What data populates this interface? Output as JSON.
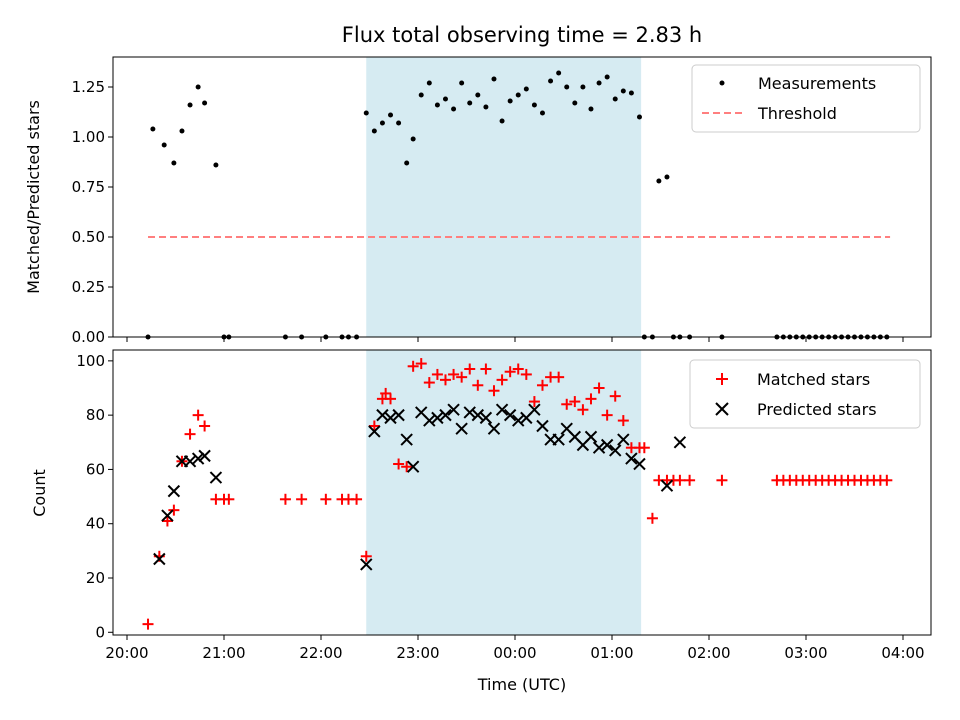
{
  "chart_data": {
    "title": "Flux total observing time = 2.83 h",
    "xlabel": "Time (UTC)",
    "x_ticks": [
      "20:00",
      "21:00",
      "22:00",
      "23:00",
      "00:00",
      "01:00",
      "02:00",
      "03:00",
      "04:00"
    ],
    "shaded_interval": {
      "start": "22:28",
      "end": "01:18",
      "color": "#add8e6"
    },
    "panels": [
      {
        "type": "scatter",
        "ylabel": "Matched/Predicted stars",
        "ylim": [
          0,
          1.4
        ],
        "y_ticks": [
          "0.00",
          "0.25",
          "0.50",
          "0.75",
          "1.00",
          "1.25"
        ],
        "legend": {
          "position": "top-right",
          "entries": [
            "Measurements",
            "Threshold"
          ]
        },
        "series": [
          {
            "name": "Measurements",
            "marker": "dot",
            "color": "#000000",
            "x": [
              "20:13",
              "20:16",
              "20:23",
              "20:29",
              "20:34",
              "20:39",
              "20:44",
              "20:48",
              "20:55",
              "21:00",
              "21:03",
              "21:38",
              "21:48",
              "22:03",
              "22:13",
              "22:17",
              "22:22",
              "22:28",
              "22:33",
              "22:38",
              "22:43",
              "22:48",
              "22:53",
              "22:57",
              "23:02",
              "23:07",
              "23:12",
              "23:17",
              "23:22",
              "23:27",
              "23:32",
              "23:37",
              "23:42",
              "23:47",
              "23:52",
              "23:57",
              "00:02",
              "00:07",
              "00:12",
              "00:17",
              "00:22",
              "00:27",
              "00:32",
              "00:37",
              "00:42",
              "00:47",
              "00:52",
              "00:57",
              "01:02",
              "01:07",
              "01:12",
              "01:17",
              "01:20",
              "01:25",
              "01:29",
              "01:34",
              "01:38",
              "01:42",
              "01:48",
              "02:08",
              "02:42",
              "02:46",
              "02:50",
              "02:54",
              "02:58",
              "03:02",
              "03:06",
              "03:10",
              "03:14",
              "03:18",
              "03:22",
              "03:26",
              "03:30",
              "03:34",
              "03:38",
              "03:42",
              "03:46",
              "03:50"
            ],
            "y": [
              0,
              1.04,
              0.96,
              0.87,
              1.03,
              1.16,
              1.25,
              1.17,
              0.86,
              0,
              0,
              0,
              0,
              0,
              0,
              0,
              0,
              1.12,
              1.03,
              1.07,
              1.11,
              1.07,
              0.87,
              0.99,
              1.21,
              1.27,
              1.16,
              1.19,
              1.14,
              1.27,
              1.17,
              1.21,
              1.15,
              1.29,
              1.08,
              1.18,
              1.21,
              1.24,
              1.16,
              1.12,
              1.28,
              1.32,
              1.25,
              1.17,
              1.25,
              1.14,
              1.27,
              1.3,
              1.19,
              1.23,
              1.22,
              1.1,
              0,
              0,
              0.78,
              0.8,
              0,
              0,
              0,
              0,
              0,
              0,
              0,
              0,
              0,
              0,
              0,
              0,
              0,
              0,
              0,
              0,
              0,
              0,
              0,
              0,
              0,
              0
            ]
          },
          {
            "name": "Threshold",
            "style": "dashed",
            "color": "#ff7f7f",
            "x": [
              "20:13",
              "03:52"
            ],
            "y": [
              0.5,
              0.5
            ]
          }
        ]
      },
      {
        "type": "scatter",
        "ylabel": "Count",
        "ylim": [
          -1,
          104
        ],
        "y_ticks": [
          "0",
          "20",
          "40",
          "60",
          "80",
          "100"
        ],
        "legend": {
          "position": "top-right",
          "entries": [
            "Matched stars",
            "Predicted stars"
          ]
        },
        "series": [
          {
            "name": "Matched stars",
            "marker": "plus",
            "color": "#ff0000",
            "x": [
              "20:13",
              "20:20",
              "20:25",
              "20:29",
              "20:34",
              "20:39",
              "20:44",
              "20:48",
              "20:55",
              "21:00",
              "21:03",
              "21:38",
              "21:48",
              "22:03",
              "22:13",
              "22:17",
              "22:22",
              "22:28",
              "22:33",
              "22:38",
              "22:40",
              "22:43",
              "22:48",
              "22:53",
              "22:57",
              "23:02",
              "23:07",
              "23:12",
              "23:17",
              "23:22",
              "23:27",
              "23:32",
              "23:37",
              "23:42",
              "23:47",
              "23:52",
              "23:57",
              "00:02",
              "00:07",
              "00:12",
              "00:17",
              "00:22",
              "00:27",
              "00:32",
              "00:37",
              "00:42",
              "00:47",
              "00:52",
              "00:57",
              "01:02",
              "01:07",
              "01:12",
              "01:17",
              "01:20",
              "01:25",
              "01:29",
              "01:34",
              "01:38",
              "01:42",
              "01:48",
              "02:08",
              "02:42",
              "02:46",
              "02:50",
              "02:54",
              "02:58",
              "03:02",
              "03:06",
              "03:10",
              "03:14",
              "03:18",
              "03:22",
              "03:26",
              "03:30",
              "03:34",
              "03:38",
              "03:42",
              "03:46",
              "03:50"
            ],
            "y": [
              3,
              28,
              41,
              45,
              63,
              73,
              80,
              76,
              49,
              49,
              49,
              49,
              49,
              49,
              49,
              49,
              49,
              28,
              76,
              86,
              88,
              86,
              62,
              61,
              98,
              99,
              92,
              95,
              93,
              95,
              94,
              97,
              91,
              97,
              89,
              93,
              96,
              97,
              95,
              85,
              91,
              94,
              94,
              84,
              85,
              82,
              86,
              90,
              80,
              87,
              78,
              68,
              68,
              68,
              42,
              56,
              56,
              56,
              56,
              56,
              56,
              56,
              56,
              56,
              56,
              56,
              56,
              56,
              56,
              56,
              56,
              56,
              56,
              56,
              56,
              56,
              56,
              56,
              56
            ]
          },
          {
            "name": "Predicted stars",
            "marker": "x",
            "color": "#000000",
            "x": [
              "20:20",
              "20:25",
              "20:29",
              "20:34",
              "20:39",
              "20:44",
              "20:48",
              "20:55",
              "22:28",
              "22:33",
              "22:38",
              "22:43",
              "22:48",
              "22:53",
              "22:57",
              "23:02",
              "23:07",
              "23:12",
              "23:17",
              "23:22",
              "23:27",
              "23:32",
              "23:37",
              "23:42",
              "23:47",
              "23:52",
              "23:57",
              "00:02",
              "00:07",
              "00:12",
              "00:17",
              "00:22",
              "00:27",
              "00:32",
              "00:37",
              "00:42",
              "00:47",
              "00:52",
              "00:57",
              "01:02",
              "01:07",
              "01:12",
              "01:17",
              "01:34",
              "01:42"
            ],
            "y": [
              27,
              43,
              52,
              63,
              63,
              64,
              65,
              57,
              25,
              74,
              80,
              79,
              80,
              71,
              61,
              81,
              78,
              79,
              80,
              82,
              75,
              81,
              80,
              79,
              75,
              82,
              80,
              78,
              79,
              82,
              76,
              71,
              71,
              75,
              72,
              69,
              72,
              68,
              69,
              67,
              71,
              64,
              62,
              54,
              70
            ]
          }
        ]
      }
    ]
  }
}
